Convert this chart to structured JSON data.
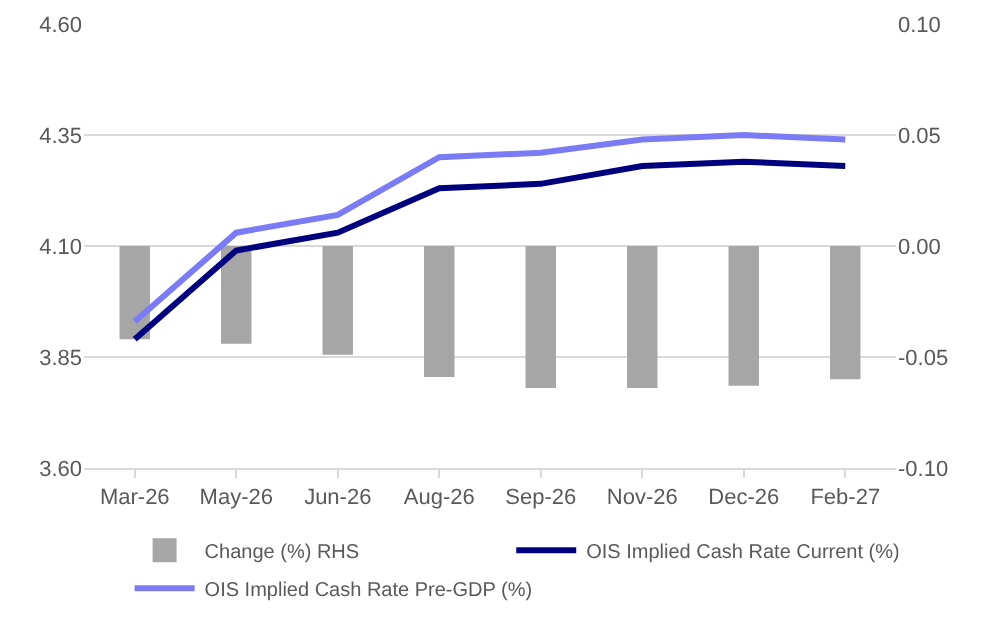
{
  "chart_data": {
    "type": "line",
    "categories": [
      "Mar-26",
      "May-26",
      "Jun-26",
      "Aug-26",
      "Sep-26",
      "Nov-26",
      "Dec-26",
      "Feb-27"
    ],
    "series": [
      {
        "name": "Change (%) RHS",
        "type": "bar",
        "axis": "y2",
        "color": "#a6a6a6",
        "values": [
          -0.042,
          -0.044,
          -0.049,
          -0.059,
          -0.064,
          -0.064,
          -0.063,
          -0.06
        ]
      },
      {
        "name": "OIS Implied Cash Rate Current (%)",
        "color": "#00007f",
        "values": [
          3.89,
          4.09,
          4.13,
          4.23,
          4.24,
          4.28,
          4.29,
          4.28
        ]
      },
      {
        "name": "OIS Implied Cash Rate Pre-GDP (%)",
        "color": "#7b7bf5",
        "values": [
          3.93,
          4.13,
          4.17,
          4.3,
          4.31,
          4.34,
          4.35,
          4.34
        ]
      }
    ],
    "ylim": [
      3.6,
      4.6
    ],
    "yticks": [
      {
        "value": 3.6,
        "label": "3.60"
      },
      {
        "value": 3.85,
        "label": "3.85"
      },
      {
        "value": 4.1,
        "label": "4.10"
      },
      {
        "value": 4.35,
        "label": "4.35"
      },
      {
        "value": 4.6,
        "label": "4.60"
      }
    ],
    "y2lim": [
      -0.1,
      0.1
    ],
    "y2ticks": [
      {
        "value": -0.1,
        "label": "-0.10"
      },
      {
        "value": -0.05,
        "label": "-0.05"
      },
      {
        "value": 0,
        "label": "0.00"
      },
      {
        "value": 0.05,
        "label": "0.05"
      },
      {
        "value": 0.1,
        "label": "0.10"
      }
    ],
    "grid": "y",
    "legend": "bottom"
  }
}
